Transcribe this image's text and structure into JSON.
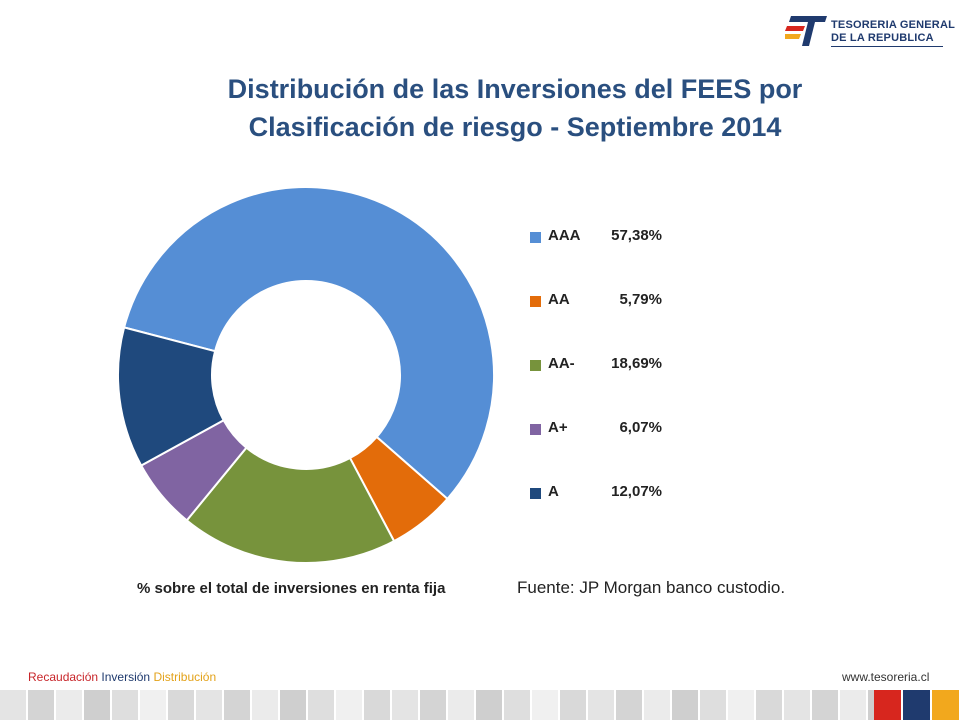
{
  "logo": {
    "line1": "TESORERIA GENERAL",
    "line2": "DE LA REPUBLICA",
    "icon": "tesoreria-logo-icon"
  },
  "title_line1": "Distribución de las Inversiones del FEES por",
  "title_line2": "Clasificación de riesgo - Septiembre 2014",
  "chart_data": {
    "type": "pie",
    "title": "Distribución de las Inversiones del FEES por Clasificación de riesgo - Septiembre 2014",
    "categories": [
      "AAA",
      "AA",
      "AA-",
      "A+",
      "A"
    ],
    "values": [
      57.38,
      5.79,
      18.69,
      6.07,
      12.07
    ],
    "value_labels": [
      "57,38%",
      "5,79%",
      "18,69%",
      "6,07%",
      "12,07%"
    ],
    "colors": [
      "#558ed5",
      "#e36c0a",
      "#77933c",
      "#8064a2",
      "#1f497d"
    ],
    "donut": true,
    "legend_position": "right",
    "caption": "% sobre el total de inversiones en renta fija"
  },
  "source": "Fuente: JP Morgan banco custodio.",
  "footer": {
    "word1": "Recaudación",
    "word2": "Inversión",
    "word3": "Distribución",
    "website": "www.tesoreria.cl",
    "accent_colors": [
      "#d7261e",
      "#1f3a6e",
      "#f2a81d"
    ]
  }
}
